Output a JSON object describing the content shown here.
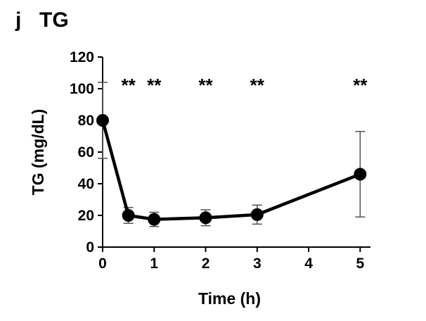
{
  "panel": {
    "letter": "j",
    "title": "TG"
  },
  "chart_data": {
    "type": "line",
    "title": "TG",
    "xlabel": "Time (h)",
    "ylabel": "TG (mg/dL)",
    "xlim": [
      0,
      5.2
    ],
    "ylim": [
      0,
      120
    ],
    "xticks": [
      0,
      1,
      2,
      3,
      4,
      5
    ],
    "yticks": [
      0,
      20,
      40,
      60,
      80,
      100,
      120
    ],
    "series": [
      {
        "name": "TG",
        "x": [
          0,
          0.5,
          1,
          2,
          3,
          5
        ],
        "y": [
          80,
          20,
          17.5,
          18.5,
          20.5,
          46
        ],
        "error": [
          24,
          5,
          4.5,
          5,
          6,
          27
        ],
        "color": "#000000"
      }
    ],
    "significance": [
      {
        "x": 0.5,
        "label": "**"
      },
      {
        "x": 1,
        "label": "**"
      },
      {
        "x": 2,
        "label": "**"
      },
      {
        "x": 3,
        "label": "**"
      },
      {
        "x": 5,
        "label": "**"
      }
    ],
    "errorbar_color": "#595959",
    "grid": false
  }
}
